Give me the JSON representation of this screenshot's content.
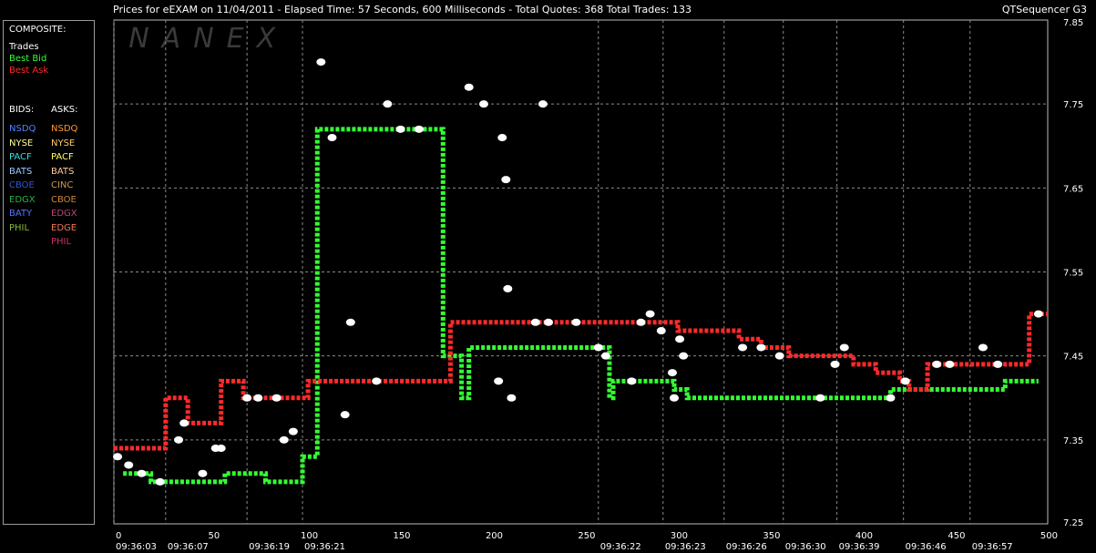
{
  "header": {
    "title": "Prices for  eEXAM  on  11/04/2011  -  Elapsed Time: 57 Seconds, 600 Milliseconds  -  Total Quotes: 368  Total Trades: 133",
    "app_name": "QTSequencer G3"
  },
  "watermark": "NANEX",
  "legend": {
    "composite_title": "COMPOSITE:",
    "composite_items": [
      {
        "label": "Trades",
        "color": "#ffffff"
      },
      {
        "label": "Best Bid",
        "color": "#33ff33"
      },
      {
        "label": "Best Ask",
        "color": "#ff2a2a"
      }
    ],
    "bids_title": "BIDS:",
    "asks_title": "ASKS:",
    "bids": [
      {
        "label": "NSDQ",
        "color": "#4f86ff"
      },
      {
        "label": "NYSE",
        "color": "#ffff99"
      },
      {
        "label": "PACF",
        "color": "#33e0e0"
      },
      {
        "label": "BATS",
        "color": "#99ccff"
      },
      {
        "label": "CBOE",
        "color": "#3355cc"
      },
      {
        "label": "EDGX",
        "color": "#2fae4a"
      },
      {
        "label": "BATY",
        "color": "#5577ff"
      },
      {
        "label": "PHIL",
        "color": "#88bb33"
      }
    ],
    "asks": [
      {
        "label": "NSDQ",
        "color": "#ff9933"
      },
      {
        "label": "NYSE",
        "color": "#ffcc66"
      },
      {
        "label": "PACF",
        "color": "#ffff66"
      },
      {
        "label": "BATS",
        "color": "#ffcc99"
      },
      {
        "label": "CINC",
        "color": "#cc9955"
      },
      {
        "label": "CBOE",
        "color": "#cc8833"
      },
      {
        "label": "EDGX",
        "color": "#bb4477"
      },
      {
        "label": "EDGE",
        "color": "#ee7755"
      },
      {
        "label": "PHIL",
        "color": "#cc3366"
      }
    ]
  },
  "chart_data": {
    "type": "line",
    "title": "Prices for  eEXAM  on  11/04/2011",
    "xlim": [
      0,
      505
    ],
    "ylim": [
      7.25,
      7.85
    ],
    "y_ticks": [
      "7.85",
      "7.75",
      "7.65",
      "7.55",
      "7.45",
      "7.35",
      "7.25"
    ],
    "x_ticks": [
      "0",
      "50",
      "100",
      "150",
      "200",
      "250",
      "300",
      "350",
      "400",
      "450",
      "500"
    ],
    "time_labels": [
      {
        "x": 0,
        "label": "09:36:03"
      },
      {
        "x": 28,
        "label": "09:36:07"
      },
      {
        "x": 72,
        "label": "09:36:19"
      },
      {
        "x": 102,
        "label": "09:36:21"
      },
      {
        "x": 262,
        "label": "09:36:22"
      },
      {
        "x": 297,
        "label": "09:36:23"
      },
      {
        "x": 330,
        "label": "09:36:26"
      },
      {
        "x": 362,
        "label": "09:36:30"
      },
      {
        "x": 391,
        "label": "09:36:39"
      },
      {
        "x": 427,
        "label": "09:36:46"
      },
      {
        "x": 463,
        "label": "09:36:57"
      }
    ],
    "grid": true,
    "series": [
      {
        "name": "Best Bid",
        "color": "#33ff33",
        "points": [
          [
            5,
            7.31
          ],
          [
            20,
            7.3
          ],
          [
            40,
            7.3
          ],
          [
            55,
            7.3
          ],
          [
            60,
            7.31
          ],
          [
            72,
            7.31
          ],
          [
            82,
            7.3
          ],
          [
            98,
            7.3
          ],
          [
            102,
            7.33
          ],
          [
            110,
            7.72
          ],
          [
            130,
            7.72
          ],
          [
            150,
            7.72
          ],
          [
            168,
            7.72
          ],
          [
            175,
            7.72
          ],
          [
            178,
            7.45
          ],
          [
            185,
            7.45
          ],
          [
            188,
            7.4
          ],
          [
            192,
            7.46
          ],
          [
            210,
            7.46
          ],
          [
            220,
            7.46
          ],
          [
            260,
            7.46
          ],
          [
            268,
            7.4
          ],
          [
            270,
            7.42
          ],
          [
            280,
            7.42
          ],
          [
            296,
            7.42
          ],
          [
            303,
            7.41
          ],
          [
            310,
            7.4
          ],
          [
            330,
            7.4
          ],
          [
            360,
            7.4
          ],
          [
            380,
            7.4
          ],
          [
            408,
            7.4
          ],
          [
            420,
            7.41
          ],
          [
            440,
            7.41
          ],
          [
            460,
            7.41
          ],
          [
            475,
            7.41
          ],
          [
            482,
            7.42
          ],
          [
            500,
            7.42
          ]
        ]
      },
      {
        "name": "Best Ask",
        "color": "#ff2a2a",
        "points": [
          [
            0,
            7.34
          ],
          [
            8,
            7.34
          ],
          [
            20,
            7.34
          ],
          [
            28,
            7.4
          ],
          [
            38,
            7.4
          ],
          [
            40,
            7.37
          ],
          [
            55,
            7.37
          ],
          [
            58,
            7.42
          ],
          [
            65,
            7.42
          ],
          [
            70,
            7.4
          ],
          [
            80,
            7.4
          ],
          [
            88,
            7.4
          ],
          [
            105,
            7.42
          ],
          [
            130,
            7.42
          ],
          [
            150,
            7.42
          ],
          [
            180,
            7.42
          ],
          [
            182,
            7.49
          ],
          [
            200,
            7.49
          ],
          [
            215,
            7.49
          ],
          [
            235,
            7.49
          ],
          [
            270,
            7.49
          ],
          [
            300,
            7.49
          ],
          [
            305,
            7.48
          ],
          [
            320,
            7.48
          ],
          [
            338,
            7.47
          ],
          [
            350,
            7.46
          ],
          [
            365,
            7.45
          ],
          [
            385,
            7.45
          ],
          [
            400,
            7.44
          ],
          [
            412,
            7.43
          ],
          [
            420,
            7.43
          ],
          [
            425,
            7.42
          ],
          [
            430,
            7.41
          ],
          [
            440,
            7.44
          ],
          [
            460,
            7.44
          ],
          [
            480,
            7.44
          ],
          [
            493,
            7.44
          ],
          [
            495,
            7.5
          ],
          [
            505,
            7.5
          ]
        ]
      },
      {
        "name": "Trades",
        "color": "#ffffff",
        "points": [
          [
            2,
            7.33
          ],
          [
            8,
            7.32
          ],
          [
            15,
            7.31
          ],
          [
            25,
            7.3
          ],
          [
            35,
            7.35
          ],
          [
            38,
            7.37
          ],
          [
            48,
            7.31
          ],
          [
            55,
            7.34
          ],
          [
            58,
            7.34
          ],
          [
            72,
            7.4
          ],
          [
            78,
            7.4
          ],
          [
            88,
            7.4
          ],
          [
            92,
            7.35
          ],
          [
            97,
            7.36
          ],
          [
            112,
            7.8
          ],
          [
            118,
            7.71
          ],
          [
            125,
            7.38
          ],
          [
            128,
            7.49
          ],
          [
            142,
            7.42
          ],
          [
            148,
            7.75
          ],
          [
            155,
            7.72
          ],
          [
            165,
            7.72
          ],
          [
            192,
            7.77
          ],
          [
            200,
            7.75
          ],
          [
            208,
            7.42
          ],
          [
            210,
            7.71
          ],
          [
            212,
            7.66
          ],
          [
            213,
            7.53
          ],
          [
            215,
            7.4
          ],
          [
            228,
            7.49
          ],
          [
            232,
            7.75
          ],
          [
            235,
            7.49
          ],
          [
            250,
            7.49
          ],
          [
            262,
            7.46
          ],
          [
            266,
            7.45
          ],
          [
            280,
            7.42
          ],
          [
            285,
            7.49
          ],
          [
            290,
            7.5
          ],
          [
            296,
            7.48
          ],
          [
            302,
            7.43
          ],
          [
            303,
            7.4
          ],
          [
            306,
            7.47
          ],
          [
            308,
            7.45
          ],
          [
            340,
            7.46
          ],
          [
            350,
            7.46
          ],
          [
            360,
            7.45
          ],
          [
            382,
            7.4
          ],
          [
            390,
            7.44
          ],
          [
            395,
            7.46
          ],
          [
            420,
            7.4
          ],
          [
            428,
            7.42
          ],
          [
            445,
            7.44
          ],
          [
            452,
            7.44
          ],
          [
            470,
            7.46
          ],
          [
            478,
            7.44
          ],
          [
            500,
            7.5
          ]
        ]
      }
    ]
  }
}
